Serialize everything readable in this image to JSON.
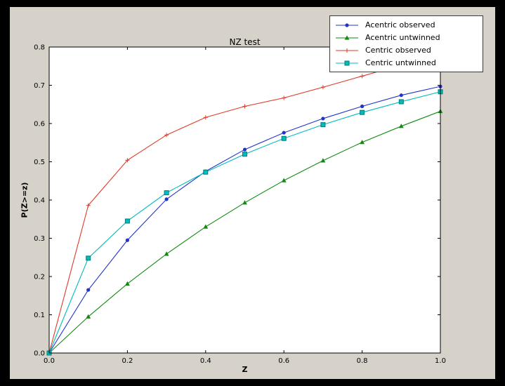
{
  "figure": {
    "background": "#d6d2ca",
    "frame_color": "#000000",
    "axes_background": "#ffffff"
  },
  "chart_data": {
    "type": "line",
    "title": "NZ test",
    "xlabel": "Z",
    "ylabel": "P(Z>=z)",
    "xlim": [
      0.0,
      1.0
    ],
    "ylim": [
      0.0,
      0.8
    ],
    "xticks": [
      "0.0",
      "0.2",
      "0.4",
      "0.6",
      "0.8",
      "1.0"
    ],
    "yticks": [
      "0.0",
      "0.1",
      "0.2",
      "0.3",
      "0.4",
      "0.5",
      "0.6",
      "0.7",
      "0.8"
    ],
    "grid": false,
    "legend_position": "upper-right",
    "x": [
      0.0,
      0.1,
      0.2,
      0.3,
      0.4,
      0.5,
      0.6,
      0.7,
      0.8,
      0.9,
      1.0
    ],
    "series": [
      {
        "name": "Acentric observed",
        "color": "#2233cc",
        "marker": "circle",
        "values": [
          0.0,
          0.165,
          0.295,
          0.402,
          0.475,
          0.532,
          0.576,
          0.613,
          0.645,
          0.674,
          0.697
        ]
      },
      {
        "name": "Acentric untwinned",
        "color": "#128a12",
        "marker": "triangle",
        "values": [
          0.0,
          0.095,
          0.181,
          0.259,
          0.33,
          0.393,
          0.451,
          0.503,
          0.551,
          0.593,
          0.632
        ]
      },
      {
        "name": "Centric observed",
        "color": "#e13a28",
        "marker": "plus",
        "values": [
          0.0,
          0.386,
          0.504,
          0.57,
          0.616,
          0.645,
          0.667,
          0.695,
          0.724,
          0.753,
          0.772
        ]
      },
      {
        "name": "Centric untwinned",
        "color": "#00bcbc",
        "marker": "square",
        "marker_edge": "#007a7a",
        "values": [
          0.0,
          0.248,
          0.345,
          0.419,
          0.473,
          0.52,
          0.561,
          0.597,
          0.629,
          0.657,
          0.683
        ]
      }
    ]
  }
}
